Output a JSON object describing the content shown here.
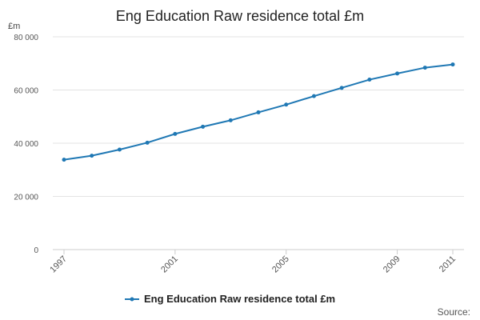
{
  "chart_data": {
    "type": "line",
    "title": "Eng Education Raw residence total £m",
    "y_unit": "£m",
    "source_label": "Source:",
    "x": [
      1997,
      1998,
      1999,
      2000,
      2001,
      2002,
      2003,
      2004,
      2005,
      2006,
      2007,
      2008,
      2009,
      2010,
      2011
    ],
    "x_tick_labels": [
      "1997",
      "2001",
      "2005",
      "2009",
      "2011"
    ],
    "x_tick_values": [
      1997,
      2001,
      2005,
      2009,
      2011
    ],
    "y_tick_labels": [
      "0",
      "20 000",
      "40 000",
      "60 000",
      "80 000"
    ],
    "y_tick_values": [
      0,
      20000,
      40000,
      60000,
      80000
    ],
    "ylim": [
      0,
      80000
    ],
    "xlim": [
      1997,
      2011
    ],
    "grid": true,
    "legend_position": "bottom",
    "series": [
      {
        "name": "Eng Education Raw residence total £m",
        "color": "#1f78b4",
        "values": [
          33800,
          35300,
          37600,
          40200,
          43500,
          46200,
          48600,
          51600,
          54500,
          57700,
          60800,
          63900,
          66200,
          68400,
          69600
        ]
      }
    ]
  }
}
